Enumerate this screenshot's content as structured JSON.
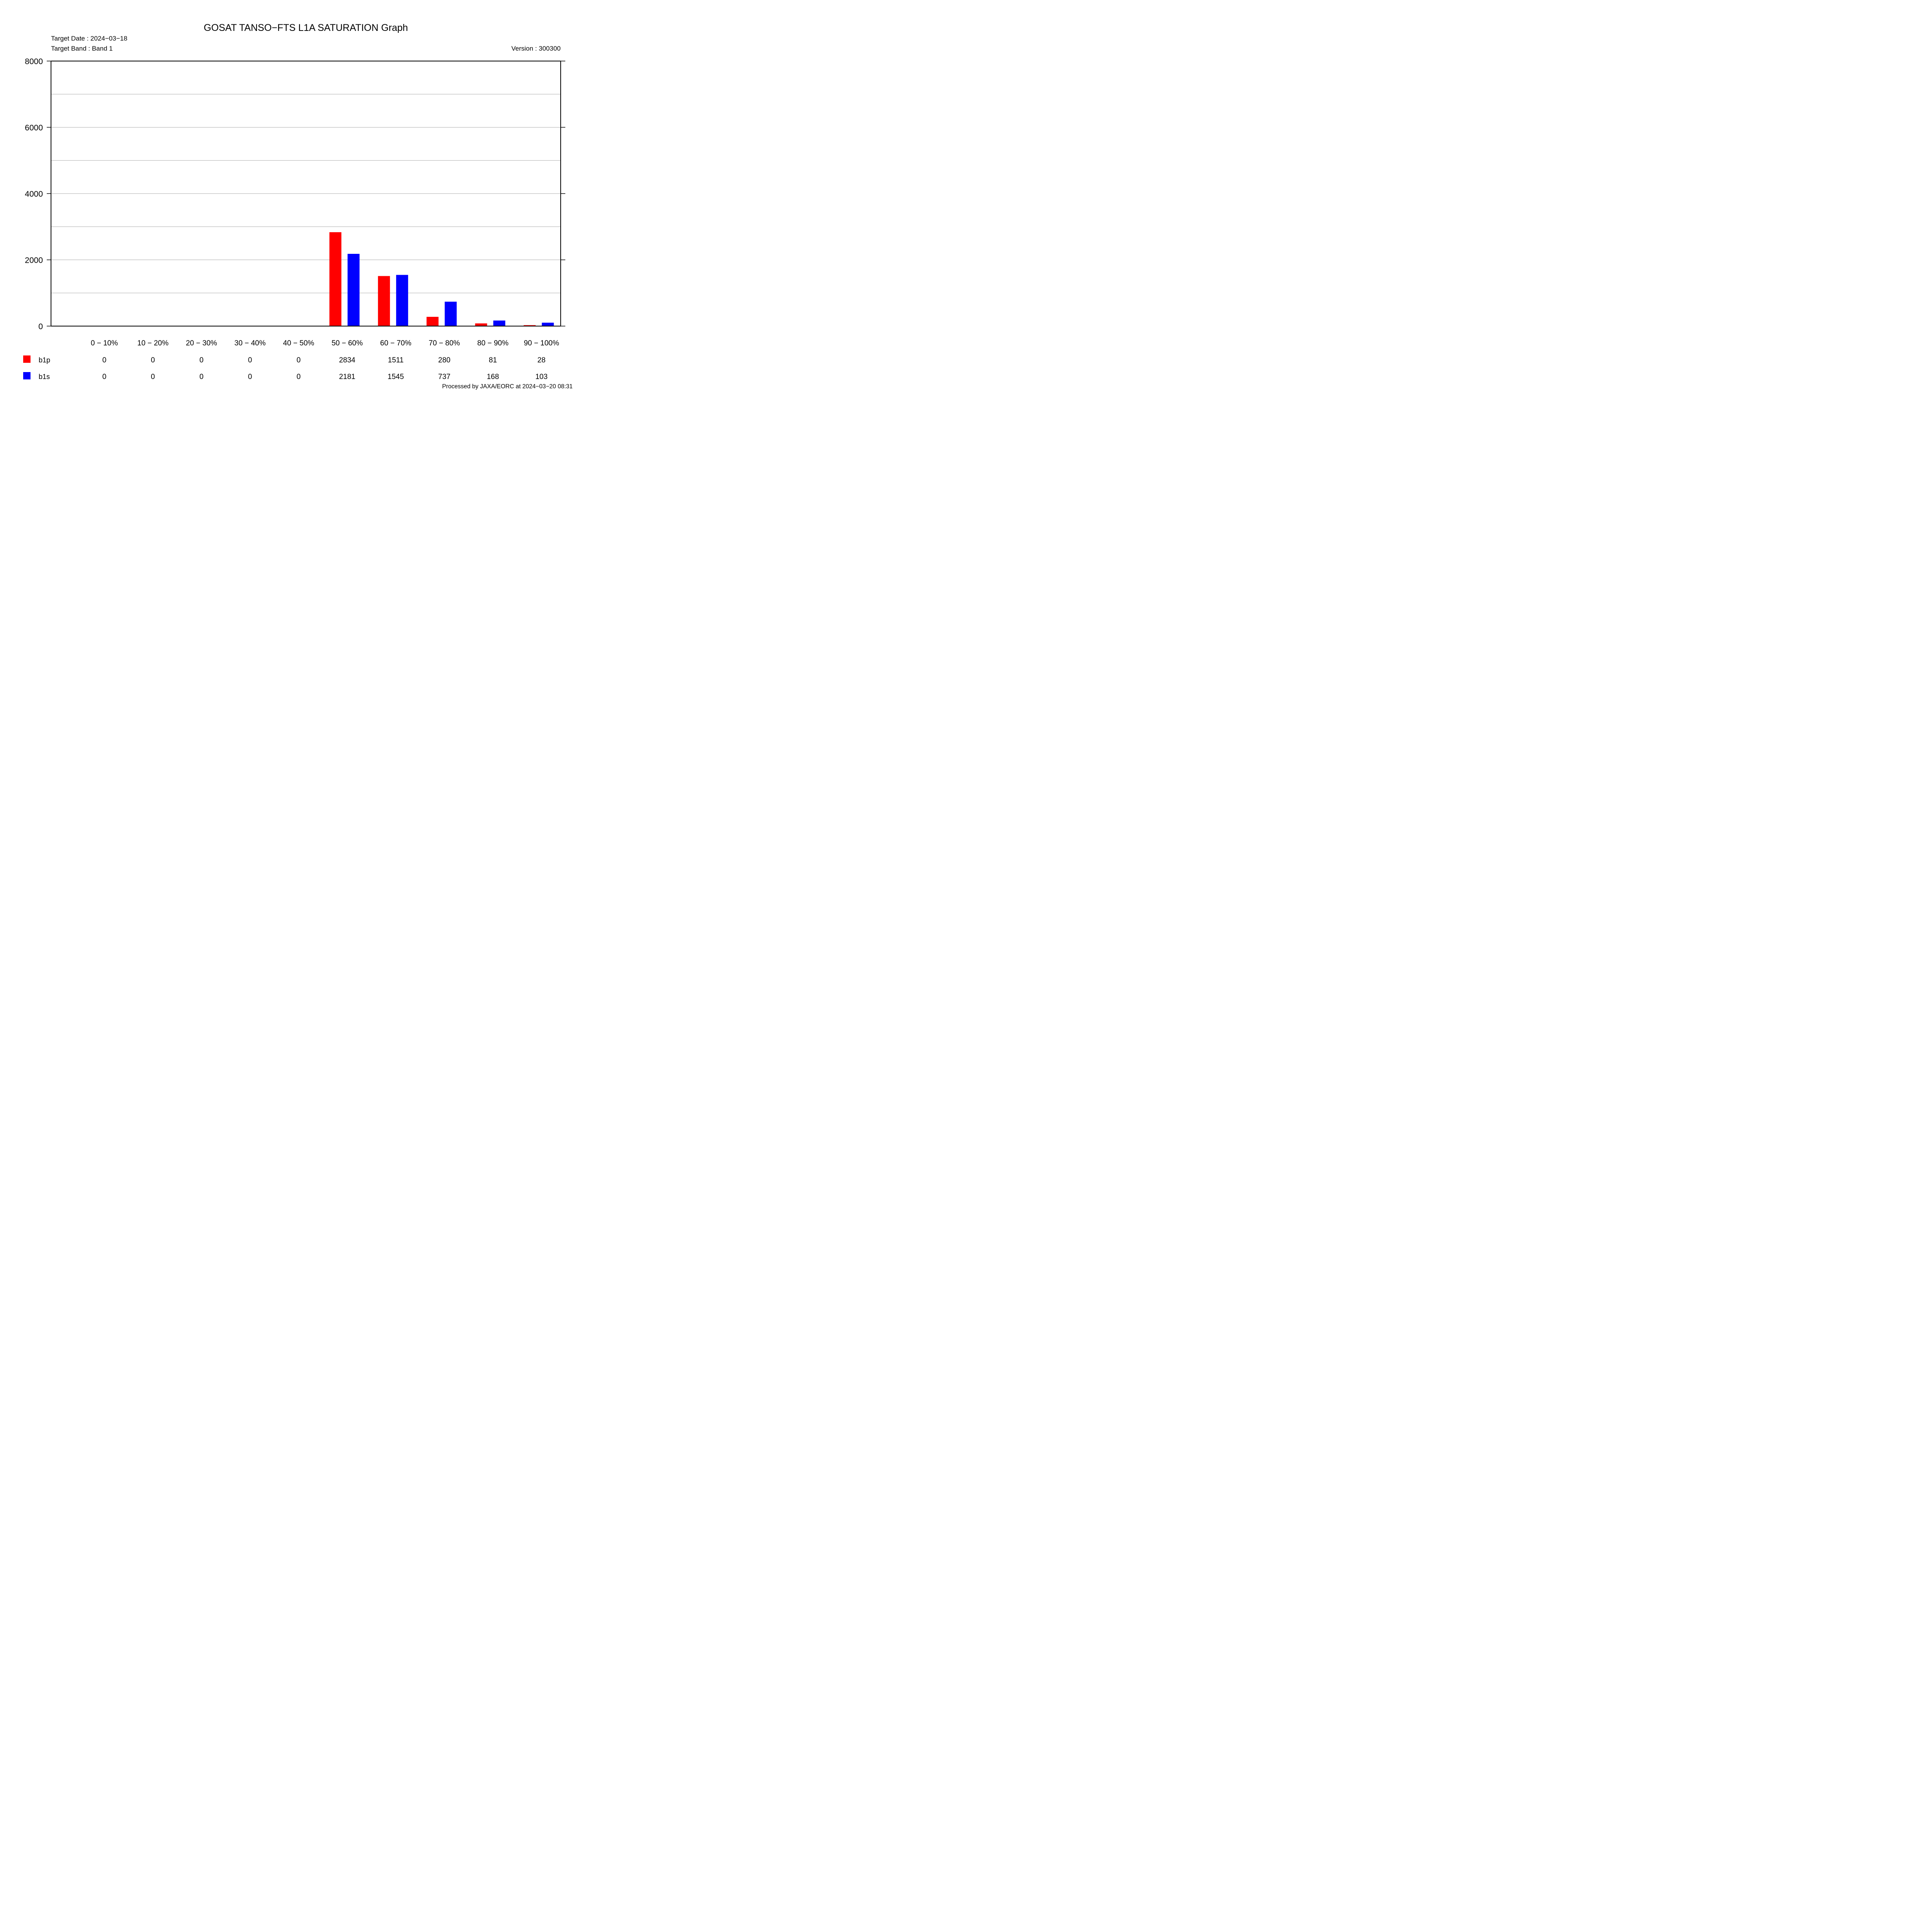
{
  "header": {
    "title": "GOSAT TANSO−FTS L1A SATURATION Graph",
    "target_date": "Target Date : 2024−03−18",
    "target_band": "Target Band : Band 1",
    "version": "Version : 300300"
  },
  "footer": {
    "processed": "Processed by JAXA/EORC at 2024−03−20 08:31"
  },
  "chart_data": {
    "type": "bar",
    "title": "GOSAT TANSO−FTS L1A SATURATION Graph",
    "categories": [
      "0 −  10%",
      "10 −  20%",
      "20 −  30%",
      "30 −  40%",
      "40 −  50%",
      "50 −  60%",
      "60 −  70%",
      "70 −  80%",
      "80 −  90%",
      "90 − 100%"
    ],
    "series": [
      {
        "name": "b1p",
        "color": "#ff0000",
        "values": [
          0,
          0,
          0,
          0,
          0,
          2834,
          1511,
          280,
          81,
          28
        ]
      },
      {
        "name": "b1s",
        "color": "#0000ff",
        "values": [
          0,
          0,
          0,
          0,
          0,
          2181,
          1545,
          737,
          168,
          103
        ]
      }
    ],
    "ylim": [
      0,
      8000
    ],
    "yticks": [
      0,
      2000,
      4000,
      6000,
      8000
    ],
    "ytick_labels": [
      "0",
      "2000",
      "4000",
      "6000",
      "8000"
    ],
    "minor_gridlines": [
      1000,
      3000,
      5000,
      7000
    ],
    "grid": true,
    "legend_position": "bottom-left table",
    "xlabel": "",
    "ylabel": ""
  }
}
